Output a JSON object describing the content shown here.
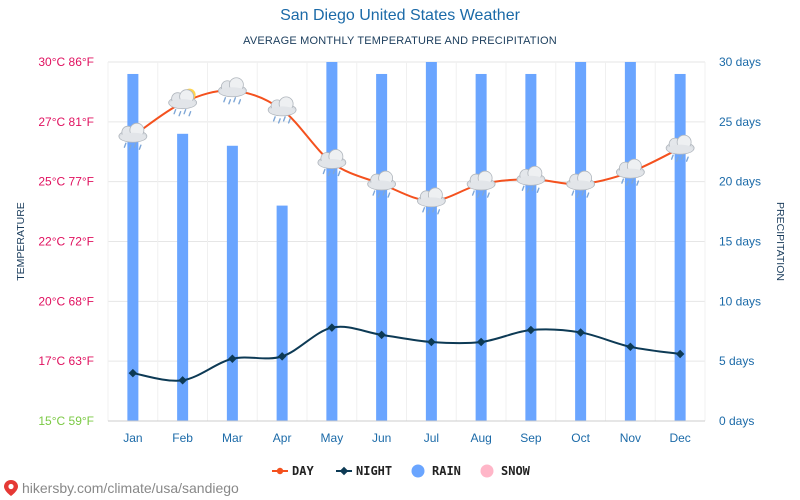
{
  "title": "San Diego United States Weather",
  "subtitle": "AVERAGE MONTHLY TEMPERATURE AND PRECIPITATION",
  "footer": "hikersby.com/climate/usa/sandiego",
  "colors": {
    "day": "#f4511e",
    "night": "#0d3a55",
    "rain": "#6aa5ff",
    "snow": "#ffb6c8",
    "temp_axis": "#e0115f",
    "temp_axis_min": "#7ac943",
    "precip_axis": "#1b6aa8",
    "grid": "#e6e6e6"
  },
  "chart_data": {
    "type": "bar+line",
    "categories": [
      "Jan",
      "Feb",
      "Mar",
      "Apr",
      "May",
      "Jun",
      "Jul",
      "Aug",
      "Sep",
      "Oct",
      "Nov",
      "Dec"
    ],
    "series": [
      {
        "name": "DAY",
        "type": "line",
        "axis": "temperature",
        "unit": "°C",
        "icon": "weather-icons",
        "values": [
          26.9,
          28.3,
          28.8,
          28.0,
          25.8,
          24.9,
          24.2,
          24.9,
          25.1,
          24.9,
          25.4,
          26.4
        ]
      },
      {
        "name": "NIGHT",
        "type": "line",
        "axis": "temperature",
        "unit": "°C",
        "values": [
          17.0,
          16.7,
          17.6,
          17.7,
          18.9,
          18.6,
          18.3,
          18.3,
          18.8,
          18.7,
          18.1,
          17.8
        ]
      },
      {
        "name": "RAIN",
        "type": "bar",
        "axis": "precipitation",
        "unit": "days",
        "values": [
          29,
          24,
          23,
          18,
          30,
          29,
          30,
          29,
          29,
          30,
          30,
          29
        ]
      },
      {
        "name": "SNOW",
        "type": "bar",
        "axis": "precipitation",
        "unit": "days",
        "values": [
          0,
          0,
          0,
          0,
          0,
          0,
          0,
          0,
          0,
          0,
          0,
          0
        ]
      }
    ],
    "y_left": {
      "label": "TEMPERATURE",
      "min": 15,
      "max": 30,
      "ticks": [
        "15°C 59°F",
        "17°C 63°F",
        "20°C 68°F",
        "22°C 72°F",
        "25°C 77°F",
        "27°C 81°F",
        "30°C 86°F"
      ]
    },
    "y_right": {
      "label": "PRECIPITATION",
      "min": 0,
      "max": 30,
      "ticks": [
        "0 days",
        "5 days",
        "10 days",
        "15 days",
        "20 days",
        "25 days",
        "30 days"
      ]
    },
    "legend": [
      "DAY",
      "NIGHT",
      "RAIN",
      "SNOW"
    ],
    "legend_position": "bottom",
    "grid": true
  }
}
